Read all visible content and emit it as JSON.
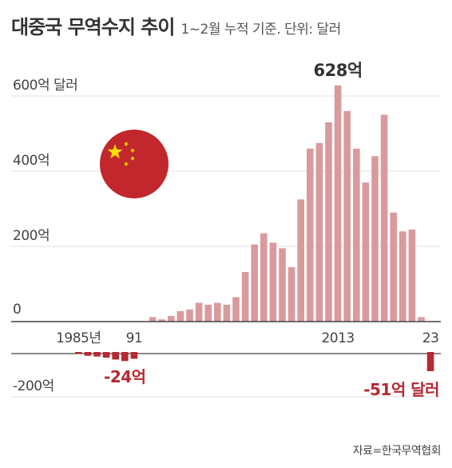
{
  "title": "대중국 무역수지 추이",
  "subtitle": "1~2월 누적 기준. 단위: 달러",
  "source": "자료=한국무역협회",
  "colors": {
    "positive_bar": "#d99a9e",
    "negative_bar": "#b52a33",
    "highlight_text": "#b52a33",
    "axis": "#444444",
    "grid": "#e2e2e2",
    "flag_red": "#c1272d",
    "flag_star": "#ffde00"
  },
  "icon": "china-flag-icon",
  "chart_data": {
    "type": "bar",
    "years": [
      1985,
      1986,
      1987,
      1988,
      1989,
      1990,
      1991,
      1992,
      1993,
      1994,
      1995,
      1996,
      1997,
      1998,
      1999,
      2000,
      2001,
      2002,
      2003,
      2004,
      2005,
      2006,
      2007,
      2008,
      2009,
      2010,
      2011,
      2012,
      2013,
      2014,
      2015,
      2016,
      2017,
      2018,
      2019,
      2020,
      2021,
      2022,
      2023
    ],
    "values": [
      -5,
      -10,
      -12,
      -15,
      -20,
      -24,
      -18,
      0,
      12,
      6,
      15,
      28,
      32,
      50,
      45,
      50,
      45,
      65,
      132,
      205,
      235,
      210,
      195,
      145,
      325,
      460,
      475,
      530,
      628,
      560,
      460,
      370,
      440,
      550,
      290,
      240,
      245,
      12,
      -51
    ],
    "y_range": [
      -200,
      628
    ],
    "y_ticks": [
      {
        "value": 600,
        "label": "600억 달러"
      },
      {
        "value": 400,
        "label": "400억"
      },
      {
        "value": 200,
        "label": "200억"
      },
      {
        "value": 0,
        "label": "0"
      },
      {
        "value": -200,
        "label": "-200억"
      }
    ],
    "x_tick_labels": [
      {
        "year": 1985,
        "label": "1985년"
      },
      {
        "year": 1991,
        "label": "91"
      },
      {
        "year": 2013,
        "label": "2013"
      },
      {
        "year": 2023,
        "label": "23"
      }
    ],
    "annotations": [
      {
        "year": 2013,
        "label": "628억"
      },
      {
        "year": 1990,
        "label": "-24억"
      },
      {
        "year": 2023,
        "label": "-51억 달러"
      }
    ],
    "grid": true
  }
}
